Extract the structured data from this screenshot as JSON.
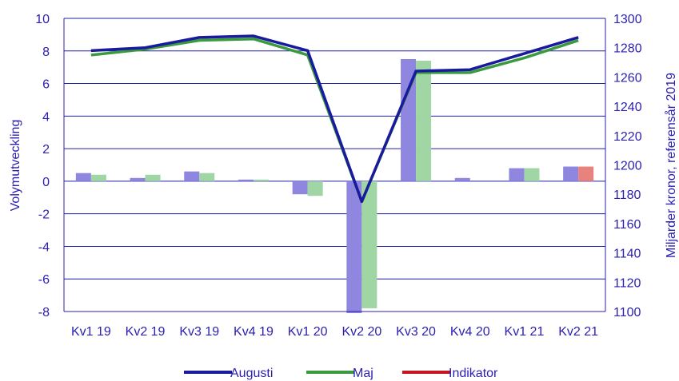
{
  "chart_data": {
    "type": "bar+line",
    "categories": [
      "Kv1 19",
      "Kv2 19",
      "Kv3 19",
      "Kv4 19",
      "Kv1 20",
      "Kv2 20",
      "Kv3 20",
      "Kv4 20",
      "Kv1 21",
      "Kv2 21"
    ],
    "left_axis": {
      "label": "Volymutveckling",
      "range": [
        -8,
        10
      ],
      "ticks": [
        -8,
        -6,
        -4,
        -2,
        0,
        2,
        4,
        6,
        8,
        10
      ]
    },
    "right_axis": {
      "label": "Miljarder kronor, referensår 2019",
      "range": [
        1100,
        1300
      ],
      "ticks": [
        1100,
        1120,
        1140,
        1160,
        1180,
        1200,
        1220,
        1240,
        1260,
        1280,
        1300
      ]
    },
    "bar_series": [
      {
        "name": "Augusti",
        "color": "#8f86e0",
        "values": [
          0.5,
          0.2,
          0.6,
          0.1,
          -0.8,
          -8.1,
          7.5,
          0.2,
          0.8,
          0.9
        ]
      },
      {
        "name": "Maj",
        "color": "#9fd6a3",
        "values": [
          0.4,
          0.4,
          0.5,
          0.1,
          -0.9,
          -7.8,
          7.4,
          null,
          0.8,
          null
        ]
      },
      {
        "name": "Indikator",
        "color": "#e8827d",
        "values": [
          null,
          null,
          null,
          null,
          null,
          null,
          null,
          null,
          null,
          0.9
        ]
      }
    ],
    "line_series": [
      {
        "name": "Augusti",
        "color": "#1a1a9e",
        "values": [
          1278,
          1280,
          1287,
          1288,
          1278,
          1175,
          1264,
          1265,
          1276,
          1287
        ]
      },
      {
        "name": "Maj",
        "color": "#3a9a3e",
        "values": [
          1275,
          1279,
          1285,
          1286,
          1275,
          1175,
          1263,
          1263,
          1273,
          1285
        ]
      }
    ],
    "grid": "horizontal",
    "legend_position": "bottom"
  }
}
